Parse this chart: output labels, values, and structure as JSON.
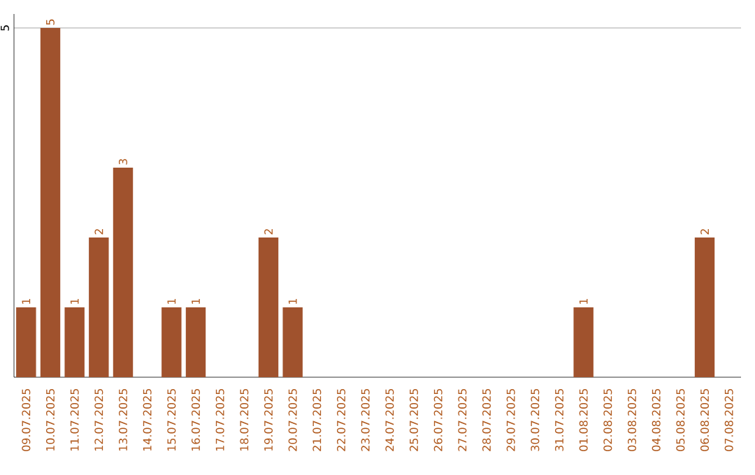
{
  "chart_data": {
    "type": "bar",
    "categories": [
      "09.07.2025",
      "10.07.2025",
      "11.07.2025",
      "12.07.2025",
      "13.07.2025",
      "14.07.2025",
      "15.07.2025",
      "16.07.2025",
      "17.07.2025",
      "18.07.2025",
      "19.07.2025",
      "20.07.2025",
      "21.07.2025",
      "22.07.2025",
      "23.07.2025",
      "24.07.2025",
      "25.07.2025",
      "26.07.2025",
      "27.07.2025",
      "28.07.2025",
      "29.07.2025",
      "30.07.2025",
      "31.07.2025",
      "01.08.2025",
      "02.08.2025",
      "03.08.2025",
      "04.08.2025",
      "05.08.2025",
      "06.08.2025",
      "07.08.2025"
    ],
    "values": [
      1,
      5,
      1,
      2,
      3,
      0,
      1,
      1,
      0,
      0,
      2,
      1,
      0,
      0,
      0,
      0,
      0,
      0,
      0,
      0,
      0,
      0,
      0,
      1,
      0,
      0,
      0,
      0,
      2,
      0
    ],
    "value_labels": [
      "1",
      "5",
      "1",
      "2",
      "3",
      null,
      "1",
      "1",
      null,
      null,
      "2",
      "1",
      null,
      null,
      null,
      null,
      null,
      null,
      null,
      null,
      null,
      null,
      null,
      "1",
      null,
      null,
      null,
      null,
      "2",
      null
    ],
    "color": "#a0522d",
    "ylim": [
      0,
      5.2
    ],
    "yticks": [
      5
    ],
    "grid": "y"
  }
}
